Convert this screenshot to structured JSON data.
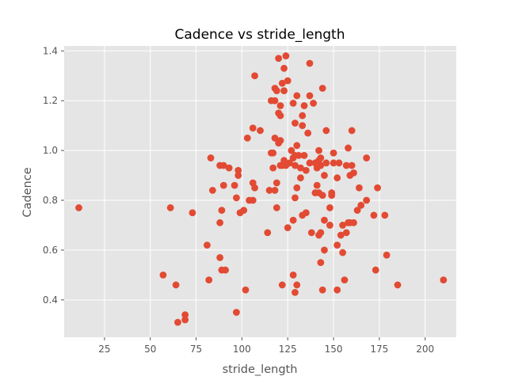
{
  "chart_data": {
    "type": "scatter",
    "title": "Cadence vs stride_length",
    "xlabel": "stride_length",
    "ylabel": "Cadence",
    "xlim": [
      3,
      217
    ],
    "ylim": [
      0.25,
      1.42
    ],
    "xticks": [
      25,
      50,
      75,
      100,
      125,
      150,
      175,
      200
    ],
    "yticks": [
      0.4,
      0.6,
      0.8,
      1.0,
      1.2,
      1.4
    ],
    "xtick_labels": [
      "25",
      "50",
      "75",
      "100",
      "125",
      "150",
      "175",
      "200"
    ],
    "ytick_labels": [
      "0.4",
      "0.6",
      "0.8",
      "1.0",
      "1.2",
      "1.4"
    ],
    "grid": true,
    "style": "ggplot",
    "colors": {
      "point": "#E24A33",
      "axes_bg": "#E5E5E5",
      "grid": "#FFFFFF"
    },
    "points": [
      [
        11,
        0.77
      ],
      [
        57,
        0.5
      ],
      [
        61,
        0.77
      ],
      [
        64,
        0.46
      ],
      [
        65,
        0.31
      ],
      [
        69,
        0.34
      ],
      [
        69,
        0.32
      ],
      [
        73,
        0.75
      ],
      [
        81,
        0.62
      ],
      [
        82,
        0.48
      ],
      [
        83,
        0.97
      ],
      [
        84,
        0.84
      ],
      [
        88,
        0.94
      ],
      [
        88,
        0.71
      ],
      [
        88,
        0.57
      ],
      [
        89,
        0.52
      ],
      [
        89,
        0.76
      ],
      [
        90,
        0.94
      ],
      [
        90,
        0.86
      ],
      [
        91,
        0.52
      ],
      [
        93,
        0.93
      ],
      [
        96,
        0.86
      ],
      [
        97,
        0.35
      ],
      [
        97,
        0.81
      ],
      [
        98,
        0.92
      ],
      [
        98,
        0.9
      ],
      [
        99,
        0.75
      ],
      [
        101,
        0.76
      ],
      [
        102,
        0.44
      ],
      [
        103,
        1.05
      ],
      [
        104,
        0.8
      ],
      [
        106,
        1.09
      ],
      [
        106,
        0.87
      ],
      [
        106,
        0.8
      ],
      [
        107,
        0.85
      ],
      [
        107,
        1.3
      ],
      [
        110,
        1.08
      ],
      [
        114,
        0.67
      ],
      [
        115,
        0.84
      ],
      [
        116,
        0.99
      ],
      [
        116,
        1.2
      ],
      [
        117,
        0.93
      ],
      [
        117,
        0.99
      ],
      [
        118,
        0.84
      ],
      [
        118,
        1.05
      ],
      [
        118,
        1.2
      ],
      [
        118,
        1.25
      ],
      [
        119,
        0.87
      ],
      [
        119,
        0.77
      ],
      [
        119,
        1.24
      ],
      [
        120,
        1.15
      ],
      [
        120,
        1.37
      ],
      [
        120,
        1.03
      ],
      [
        121,
        1.14
      ],
      [
        121,
        1.18
      ],
      [
        121,
        0.94
      ],
      [
        121,
        1.04
      ],
      [
        122,
        0.94
      ],
      [
        122,
        1.27
      ],
      [
        122,
        0.46
      ],
      [
        123,
        0.96
      ],
      [
        123,
        1.24
      ],
      [
        123,
        1.33
      ],
      [
        124,
        1.38
      ],
      [
        124,
        0.94
      ],
      [
        125,
        1.28
      ],
      [
        125,
        0.69
      ],
      [
        126,
        0.95
      ],
      [
        127,
        1.0
      ],
      [
        128,
        0.97
      ],
      [
        128,
        1.19
      ],
      [
        128,
        0.72
      ],
      [
        128,
        0.5
      ],
      [
        129,
        0.43
      ],
      [
        129,
        0.94
      ],
      [
        129,
        1.11
      ],
      [
        129,
        0.81
      ],
      [
        129,
        0.98
      ],
      [
        130,
        0.85
      ],
      [
        130,
        0.46
      ],
      [
        130,
        1.02
      ],
      [
        130,
        1.22
      ],
      [
        131,
        0.98
      ],
      [
        132,
        0.89
      ],
      [
        132,
        0.93
      ],
      [
        133,
        1.1
      ],
      [
        133,
        1.14
      ],
      [
        133,
        0.74
      ],
      [
        134,
        1.18
      ],
      [
        134,
        0.98
      ],
      [
        135,
        0.92
      ],
      [
        135,
        0.75
      ],
      [
        136,
        1.07
      ],
      [
        137,
        0.95
      ],
      [
        137,
        1.35
      ],
      [
        137,
        1.22
      ],
      [
        138,
        0.67
      ],
      [
        139,
        1.19
      ],
      [
        140,
        0.83
      ],
      [
        140,
        0.95
      ],
      [
        141,
        0.86
      ],
      [
        141,
        0.93
      ],
      [
        142,
        0.66
      ],
      [
        142,
        0.96
      ],
      [
        142,
        0.83
      ],
      [
        142,
        1.0
      ],
      [
        143,
        0.67
      ],
      [
        143,
        0.97
      ],
      [
        143,
        0.94
      ],
      [
        143,
        0.55
      ],
      [
        144,
        0.44
      ],
      [
        144,
        1.25
      ],
      [
        144,
        0.82
      ],
      [
        145,
        0.9
      ],
      [
        145,
        0.6
      ],
      [
        145,
        0.72
      ],
      [
        146,
        1.08
      ],
      [
        146,
        0.95
      ],
      [
        148,
        0.77
      ],
      [
        148,
        0.7
      ],
      [
        149,
        0.83
      ],
      [
        149,
        0.82
      ],
      [
        150,
        0.95
      ],
      [
        150,
        0.99
      ],
      [
        152,
        0.89
      ],
      [
        152,
        0.62
      ],
      [
        152,
        0.44
      ],
      [
        153,
        0.95
      ],
      [
        154,
        0.66
      ],
      [
        155,
        0.59
      ],
      [
        155,
        0.7
      ],
      [
        156,
        0.48
      ],
      [
        157,
        0.94
      ],
      [
        157,
        0.67
      ],
      [
        158,
        0.71
      ],
      [
        158,
        1.01
      ],
      [
        159,
        0.71
      ],
      [
        159,
        0.9
      ],
      [
        160,
        0.94
      ],
      [
        160,
        1.08
      ],
      [
        161,
        0.91
      ],
      [
        161,
        0.71
      ],
      [
        163,
        0.76
      ],
      [
        164,
        0.85
      ],
      [
        165,
        0.78
      ],
      [
        168,
        0.97
      ],
      [
        168,
        0.8
      ],
      [
        172,
        0.74
      ],
      [
        173,
        0.52
      ],
      [
        174,
        0.85
      ],
      [
        178,
        0.74
      ],
      [
        179,
        0.58
      ],
      [
        185,
        0.46
      ],
      [
        210,
        0.48
      ]
    ]
  }
}
